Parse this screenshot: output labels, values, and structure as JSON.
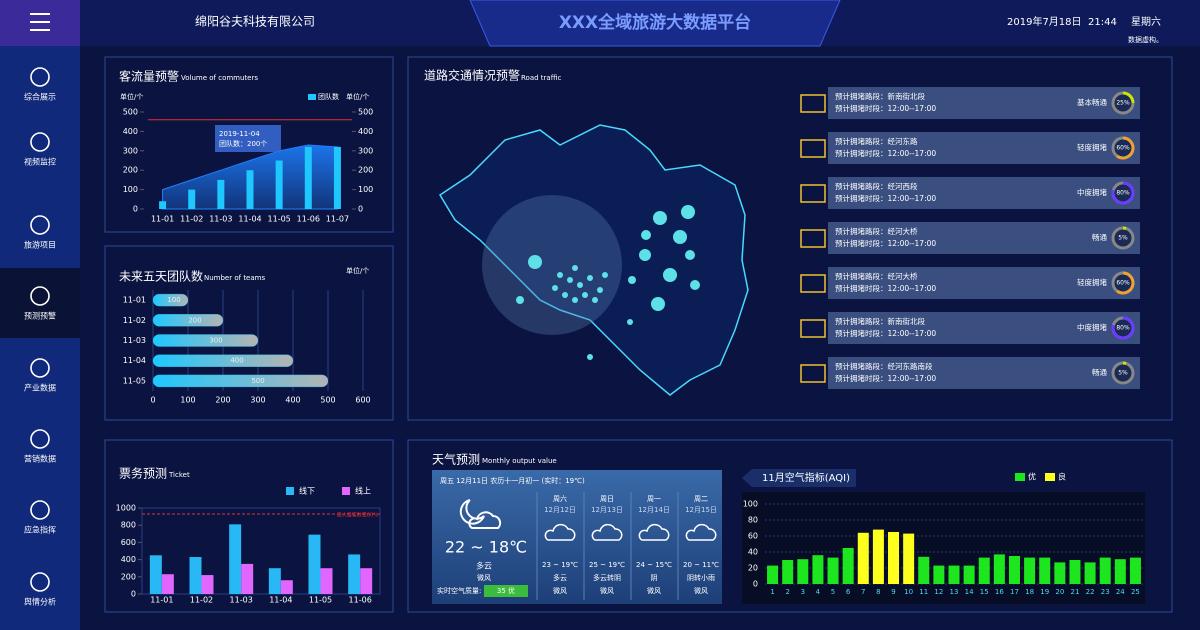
{
  "header": {
    "company": "绵阳谷夫科技有限公司",
    "title": "XXX全域旅游大数据平台",
    "date": "2019年7月18日",
    "time": "21:44",
    "weekday": "星期六",
    "note": "数据虚构。"
  },
  "sidebar": {
    "items": [
      "综合展示",
      "视频监控",
      "旅游项目",
      "预测预警",
      "产业数据",
      "营销数据",
      "应急指挥",
      "舆情分析"
    ]
  },
  "traffic": {
    "title": "道路交通情况预警",
    "subtitle": "Road traffic",
    "items": [
      {
        "road": "预计拥堵路段：新南街北段",
        "period": "预计拥堵时段：12:00--17:00",
        "status": "基本畅通",
        "percent": 25,
        "percent_label": "25%",
        "color": "#c8e600"
      },
      {
        "road": "预计拥堵路段：经河东路",
        "period": "预计拥堵时段：12:00--17:00",
        "status": "轻度拥堵",
        "percent": 60,
        "percent_label": "60%",
        "color": "#f0a030"
      },
      {
        "road": "预计拥堵路段：经河西段",
        "period": "预计拥堵时段：12:00--17:00",
        "status": "中度拥堵",
        "percent": 80,
        "percent_label": "80%",
        "color": "#6a3cff"
      },
      {
        "road": "预计拥堵路段：经河大桥",
        "period": "预计拥堵时段：12:00--17:00",
        "status": "畅通",
        "percent": 5,
        "percent_label": "5%",
        "color": "#c8e600"
      },
      {
        "road": "预计拥堵路段：经河大桥",
        "period": "预计拥堵时段：12:00--17:00",
        "status": "轻度拥堵",
        "percent": 60,
        "percent_label": "60%",
        "color": "#f0a030"
      },
      {
        "road": "预计拥堵路段：新南街北段",
        "period": "预计拥堵时段：12:00--17:00",
        "status": "中度拥堵",
        "percent": 80,
        "percent_label": "80%",
        "color": "#6a3cff"
      },
      {
        "road": "预计拥堵路段：经河东路南段",
        "period": "预计拥堵时段：12:00--17:00",
        "status": "畅通",
        "percent": 5,
        "percent_label": "5%",
        "color": "#c8e600"
      }
    ]
  },
  "weather": {
    "title": "天气预测",
    "subtitle": "Monthly output value",
    "today": {
      "header": "周五 12月11日 农历十一月初一 (实时：19℃)",
      "temp": "22 ~ 18℃",
      "condition": "多云",
      "wind": "微风",
      "aqi_label": "实时空气质量:",
      "aqi": "35 优"
    },
    "days": [
      {
        "weekday": "周六",
        "date": "12月12日",
        "temp": "23 ~ 19℃",
        "condition": "多云",
        "wind": "微风"
      },
      {
        "weekday": "周日",
        "date": "12月13日",
        "temp": "25 ~ 19℃",
        "condition": "多云转阴",
        "wind": "微风"
      },
      {
        "weekday": "周一",
        "date": "12月14日",
        "temp": "24 ~ 15℃",
        "condition": "阴",
        "wind": "微风"
      },
      {
        "weekday": "周二",
        "date": "12月15日",
        "temp": "20 ~ 11℃",
        "condition": "阴转小雨",
        "wind": "微风"
      }
    ]
  },
  "chart_data": [
    {
      "type": "bar",
      "title": "客流量预警",
      "subtitle": "Volume of commuters",
      "y_label": "单位/个",
      "y2_label": "单位/个",
      "categories": [
        "11-01",
        "11-02",
        "11-03",
        "11-04",
        "11-05",
        "11-06",
        "11-07"
      ],
      "series": [
        {
          "name": "团队数",
          "color": "#1ec8ff",
          "values": [
            40,
            100,
            150,
            200,
            250,
            320,
            320
          ]
        },
        {
          "type": "area",
          "color": "#1e7fff",
          "axis": "y2",
          "values": [
            100,
            150,
            200,
            250,
            300,
            330,
            320
          ]
        }
      ],
      "ylim": [
        0,
        500
      ],
      "yticks": [
        0,
        100,
        200,
        300,
        400,
        500
      ],
      "y2lim": [
        0,
        500
      ],
      "y2ticks": [
        0,
        100,
        200,
        300,
        400,
        500
      ],
      "warning_line": 460,
      "tooltip": {
        "title": "2019-11-04",
        "text": "团队数：200个"
      }
    },
    {
      "type": "hbar",
      "title": "未来五天团队数",
      "subtitle": "Number of teams",
      "unit": "单位/个",
      "categories": [
        "11-01",
        "11-02",
        "11-03",
        "11-04",
        "11-05"
      ],
      "values": [
        100,
        200,
        300,
        400,
        500
      ],
      "color": "#1ec8ff",
      "xlim": [
        0,
        600
      ],
      "xticks": [
        0,
        100,
        200,
        300,
        400,
        500,
        600
      ]
    },
    {
      "type": "grouped_bar",
      "title": "票务预测",
      "subtitle": "Ticket",
      "categories": [
        "11-01",
        "11-02",
        "11-03",
        "11-04",
        "11-05",
        "11-06"
      ],
      "series": [
        {
          "name": "线下",
          "color": "#27b8f5",
          "values": [
            450,
            430,
            810,
            300,
            690,
            460
          ]
        },
        {
          "name": "线上",
          "color": "#e066ff",
          "values": [
            230,
            220,
            350,
            160,
            300,
            300
          ]
        }
      ],
      "ylim": [
        0,
        1000
      ],
      "yticks": [
        0,
        200,
        400,
        600,
        800,
        1000
      ],
      "warning_line": 930,
      "warning_label": "最大载客数量80%"
    },
    {
      "type": "aqi_bar",
      "title": "11月空气指标(AQI)",
      "categories": [
        "1",
        "2",
        "3",
        "4",
        "5",
        "6",
        "7",
        "8",
        "9",
        "10",
        "11",
        "12",
        "13",
        "14",
        "15",
        "16",
        "17",
        "18",
        "19",
        "20",
        "21",
        "22",
        "23",
        "24",
        "25"
      ],
      "series": [
        {
          "name": "优",
          "color": "#1ee61e",
          "values": [
            23,
            30,
            31,
            36,
            33,
            45,
            null,
            null,
            null,
            null,
            34,
            23,
            23,
            23,
            33,
            37,
            35,
            33,
            33,
            27,
            30,
            27,
            33,
            31,
            33
          ]
        },
        {
          "name": "良",
          "color": "#ffff1e",
          "values": [
            null,
            null,
            null,
            null,
            null,
            null,
            64,
            68,
            65,
            63,
            null,
            null,
            null,
            null,
            null,
            null,
            null,
            null,
            null,
            null,
            null,
            null,
            null,
            null,
            null
          ]
        }
      ],
      "ylim": [
        0,
        100
      ],
      "yticks": [
        0,
        20,
        40,
        60,
        80,
        100
      ]
    }
  ]
}
